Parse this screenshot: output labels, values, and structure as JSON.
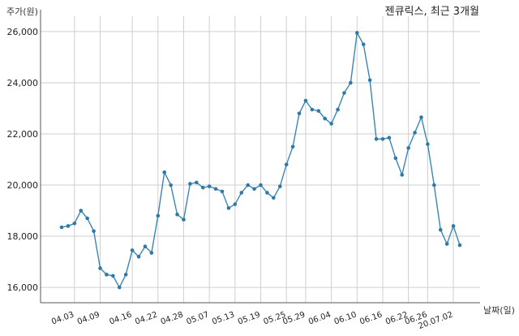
{
  "chart_data": {
    "type": "line",
    "title": "젠큐릭스, 최근 3개월",
    "ylabel": "주가(원)",
    "xlabel": "날짜(일)",
    "ylim": [
      15400,
      26600
    ],
    "yticks": [
      16000,
      18000,
      20000,
      22000,
      24000,
      26000
    ],
    "ytick_labels": [
      "16,000",
      "18,000",
      "20,000",
      "22,000",
      "24,000",
      "26,000"
    ],
    "xtick_labels": [
      "04.03",
      "04.09",
      "04.16",
      "04.22",
      "04.28",
      "05.07",
      "05.13",
      "05.19",
      "05.25",
      "05.29",
      "06.04",
      "06.10",
      "06.16",
      "06.22",
      "06.26",
      "20.07.02"
    ],
    "xtick_index": [
      2,
      6,
      11,
      15,
      19,
      23,
      27,
      31,
      35,
      38,
      42,
      46,
      50,
      54,
      57,
      61
    ],
    "grid": true,
    "series": [
      {
        "color": "#3a86b5",
        "values": [
          18350,
          18400,
          18500,
          19000,
          18700,
          18200,
          16750,
          16500,
          16450,
          16000,
          16500,
          17450,
          17200,
          17600,
          17350,
          18800,
          20500,
          20000,
          18850,
          18650,
          20050,
          20100,
          19900,
          19950,
          19850,
          19750,
          19100,
          19250,
          19700,
          20000,
          19850,
          20000,
          19700,
          19500,
          19950,
          20800,
          21500,
          22800,
          23300,
          22950,
          22900,
          22600,
          22400,
          22950,
          23600,
          24000,
          25950,
          25500,
          24100,
          21800,
          21800,
          21850,
          21050,
          20400,
          21450,
          22050,
          22650,
          21600,
          20000,
          18250,
          17700,
          18400,
          17650
        ]
      }
    ]
  }
}
